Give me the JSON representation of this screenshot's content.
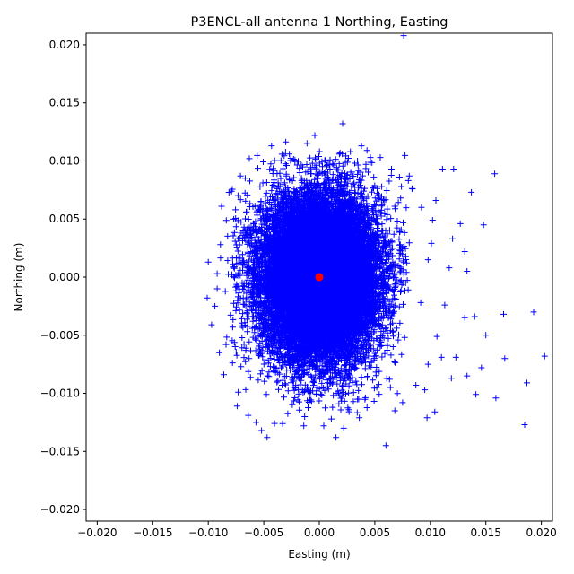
{
  "chart_data": {
    "type": "scatter",
    "title": "P3ENCL-all antenna 1 Northing, Easting",
    "xlabel": "Easting (m)",
    "ylabel": "Northing (m)",
    "xlim": [
      -0.021,
      0.021
    ],
    "ylim": [
      -0.021,
      0.021
    ],
    "xticks": [
      -0.02,
      -0.015,
      -0.01,
      -0.005,
      0.0,
      0.005,
      0.01,
      0.015,
      0.02
    ],
    "yticks": [
      -0.02,
      -0.015,
      -0.01,
      -0.005,
      0.0,
      0.005,
      0.01,
      0.015,
      0.02
    ],
    "xtick_labels": [
      "−0.020",
      "−0.015",
      "−0.010",
      "−0.005",
      "0.000",
      "0.005",
      "0.010",
      "0.015",
      "0.020"
    ],
    "ytick_labels": [
      "−0.020",
      "−0.015",
      "−0.010",
      "−0.005",
      "0.000",
      "0.005",
      "0.010",
      "0.015",
      "0.020"
    ],
    "grid": false,
    "colors": {
      "series": "#0000ff",
      "center": "#ff0000"
    },
    "series": [
      {
        "marker": "+",
        "color": "#0000ff",
        "cluster": {
          "center": [
            0.0,
            0.0
          ],
          "std_x": 0.0026,
          "std_y": 0.0035,
          "approx_count": 18000
        },
        "outliers": [
          [
            0.0021,
            0.0132
          ],
          [
            0.0076,
            0.0208
          ],
          [
            -0.0004,
            0.0122
          ],
          [
            0.0038,
            0.0113
          ],
          [
            -0.0043,
            0.0113
          ],
          [
            0.0111,
            0.0093
          ],
          [
            0.0121,
            0.0093
          ],
          [
            0.0158,
            0.0089
          ],
          [
            0.0137,
            0.0073
          ],
          [
            0.0084,
            0.0076
          ],
          [
            0.0105,
            0.0066
          ],
          [
            0.0102,
            0.0049
          ],
          [
            0.0127,
            0.0046
          ],
          [
            0.0148,
            0.0045
          ],
          [
            0.012,
            0.0033
          ],
          [
            0.0131,
            0.0022
          ],
          [
            0.0133,
            0.0005
          ],
          [
            0.0117,
            0.0008
          ],
          [
            -0.01,
            0.0013
          ],
          [
            -0.0101,
            -0.0018
          ],
          [
            -0.0092,
            0.0003
          ],
          [
            -0.0092,
            -0.001
          ],
          [
            -0.0089,
            0.0028
          ],
          [
            -0.0088,
            0.0061
          ],
          [
            0.0131,
            -0.0035
          ],
          [
            0.014,
            -0.0034
          ],
          [
            0.0166,
            -0.0032
          ],
          [
            0.0193,
            -0.003
          ],
          [
            0.0203,
            -0.0068
          ],
          [
            0.0167,
            -0.007
          ],
          [
            0.015,
            -0.005
          ],
          [
            0.0123,
            -0.0069
          ],
          [
            0.0146,
            -0.0078
          ],
          [
            0.0119,
            -0.0087
          ],
          [
            0.0133,
            -0.0085
          ],
          [
            0.0141,
            -0.0101
          ],
          [
            0.0159,
            -0.0104
          ],
          [
            0.0187,
            -0.0091
          ],
          [
            0.0185,
            -0.0127
          ],
          [
            0.0104,
            -0.0116
          ],
          [
            0.0097,
            -0.0121
          ],
          [
            0.006,
            -0.0145
          ],
          [
            0.0022,
            -0.013
          ],
          [
            0.0015,
            -0.0138
          ],
          [
            -0.0014,
            -0.0128
          ],
          [
            -0.0033,
            -0.0126
          ],
          [
            -0.0052,
            -0.0132
          ],
          [
            -0.0047,
            -0.0138
          ],
          [
            -0.0073,
            -0.0099
          ],
          [
            -0.0074,
            -0.0111
          ],
          [
            -0.0084,
            -0.0058
          ],
          [
            -0.0078,
            -0.0043
          ],
          [
            -0.0094,
            -0.0025
          ],
          [
            -0.0097,
            -0.0041
          ],
          [
            -0.0064,
            -0.0119
          ],
          [
            0.0075,
            -0.0108
          ],
          [
            0.0087,
            -0.0093
          ],
          [
            0.0098,
            -0.0075
          ],
          [
            0.0081,
            0.0087
          ],
          [
            0.0065,
            0.0093
          ],
          [
            0.0074,
            0.0078
          ],
          [
            -0.0063,
            0.0102
          ],
          [
            -0.0071,
            0.0087
          ],
          [
            -0.0079,
            0.0074
          ],
          [
            0.0046,
            0.0103
          ],
          [
            -0.0027,
            0.0106
          ],
          [
            0.0028,
            0.0108
          ],
          [
            0.0092,
            0.006
          ],
          [
            0.0101,
            0.0029
          ],
          [
            0.0098,
            0.0015
          ],
          [
            0.0113,
            -0.0024
          ],
          [
            0.0106,
            -0.0051
          ],
          [
            0.011,
            -0.0069
          ],
          [
            0.0095,
            -0.0097
          ],
          [
            0.0068,
            -0.0115
          ],
          [
            -0.0086,
            -0.0084
          ],
          [
            -0.009,
            -0.0065
          ],
          [
            -0.0057,
            -0.0125
          ],
          [
            0.0004,
            -0.0128
          ],
          [
            0.0036,
            -0.0121
          ]
        ]
      },
      {
        "marker": "o",
        "color": "#ff0000",
        "points": [
          [
            0.0,
            0.0
          ]
        ]
      }
    ]
  }
}
